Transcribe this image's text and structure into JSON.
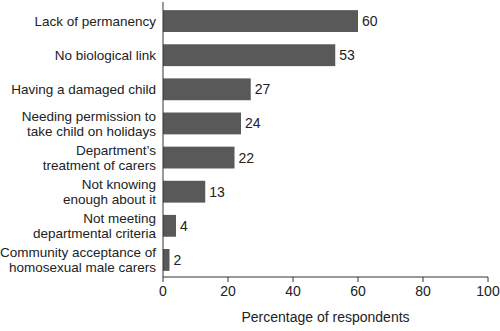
{
  "chart_data": {
    "type": "bar",
    "orientation": "horizontal",
    "categories": [
      "Lack of permanency",
      "No biological link",
      "Having a damaged child",
      "Needing permission to take child on holidays",
      "Department’s treatment of carers",
      "Not knowing enough about it",
      "Not meeting departmental criteria",
      "Community acceptance of homosexual male carers"
    ],
    "values": [
      60,
      53,
      27,
      24,
      22,
      13,
      4,
      2
    ],
    "color": "#595959",
    "x_label": "Percentage of respondents",
    "xlim": [
      0,
      100
    ],
    "xticks": [
      0,
      20,
      40,
      60,
      80,
      100
    ],
    "grid": false,
    "data_labels": true
  }
}
